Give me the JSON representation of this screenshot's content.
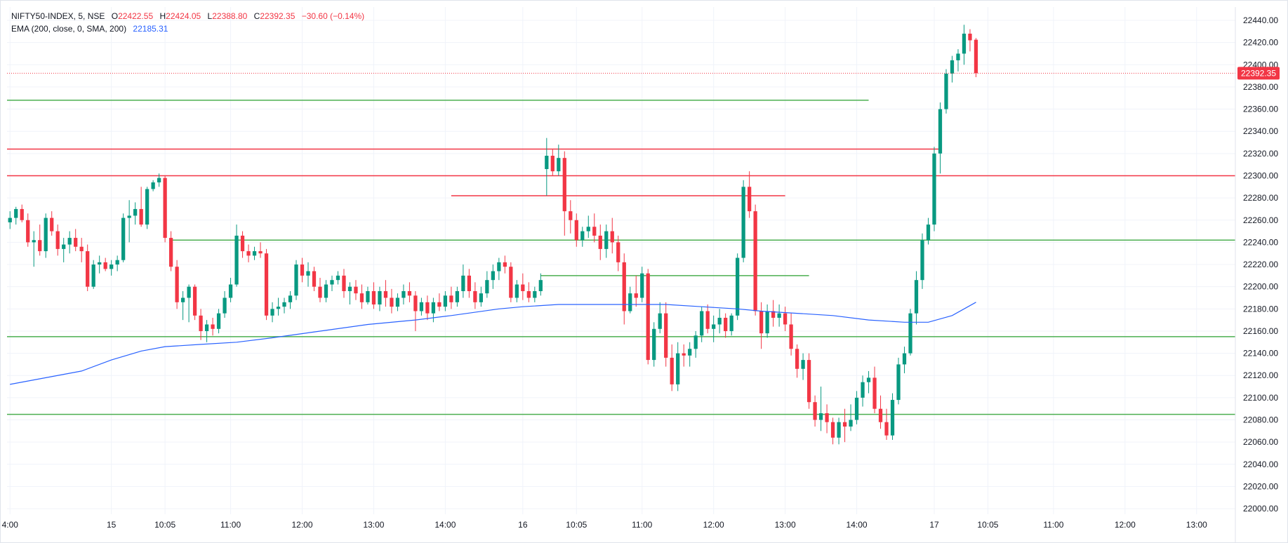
{
  "legend": {
    "symbol": "NIFTY50-INDEX, 5, NSE",
    "o_label": "O",
    "o_value": "22422.55",
    "h_label": "H",
    "h_value": "22424.05",
    "l_label": "L",
    "l_value": "22388.80",
    "c_label": "C",
    "c_value": "22392.35",
    "change": "−30.60 (−0.14%)",
    "indicator": "EMA (200, close, 0, SMA, 200)",
    "indicator_value": "22185.31"
  },
  "price_label": "22392.35",
  "colors": {
    "up": "#089981",
    "down": "#f23645",
    "ema": "#2962ff",
    "support": "#4caf50",
    "resistance": "#f23645",
    "price_line": "#f23645",
    "grid": "#f0f3fa",
    "axis_text": "#131722"
  },
  "chart_data": {
    "type": "candlestick",
    "interval_minutes": 5,
    "y_axis": {
      "ylim": [
        21995,
        22452
      ],
      "ticks": [
        "22000.00",
        "22020.00",
        "22040.00",
        "22060.00",
        "22080.00",
        "22100.00",
        "22120.00",
        "22140.00",
        "22160.00",
        "22180.00",
        "22200.00",
        "22220.00",
        "22240.00",
        "22260.00",
        "22280.00",
        "22300.00",
        "22320.00",
        "22340.00",
        "22360.00",
        "22380.00",
        "22400.00",
        "22420.00",
        "22440.00"
      ]
    },
    "x_axis": {
      "ticks": [
        {
          "label": "4:00",
          "bar": 0
        },
        {
          "label": "15",
          "bar": 17
        },
        {
          "label": "10:05",
          "bar": 26
        },
        {
          "label": "11:00",
          "bar": 37
        },
        {
          "label": "12:00",
          "bar": 49
        },
        {
          "label": "13:00",
          "bar": 61
        },
        {
          "label": "14:00",
          "bar": 73
        },
        {
          "label": "16",
          "bar": 86
        },
        {
          "label": "10:05",
          "bar": 95
        },
        {
          "label": "11:00",
          "bar": 106
        },
        {
          "label": "12:00",
          "bar": 118
        },
        {
          "label": "13:00",
          "bar": 130
        },
        {
          "label": "14:00",
          "bar": 142
        },
        {
          "label": "17",
          "bar": 155
        },
        {
          "label": "10:05",
          "bar": 164
        },
        {
          "label": "11:00",
          "bar": 175
        },
        {
          "label": "12:00",
          "bar": 187
        },
        {
          "label": "13:00",
          "bar": 199
        }
      ]
    },
    "bar_count": 206,
    "candles": [
      [
        0,
        22258,
        22268,
        22252,
        22262
      ],
      [
        1,
        22262,
        22272,
        22256,
        22270
      ],
      [
        2,
        22270,
        22274,
        22258,
        22260
      ],
      [
        3,
        22260,
        22266,
        22236,
        22240
      ],
      [
        4,
        22240,
        22250,
        22218,
        22242
      ],
      [
        5,
        22242,
        22256,
        22228,
        22232
      ],
      [
        6,
        22232,
        22266,
        22226,
        22262
      ],
      [
        7,
        22262,
        22268,
        22246,
        22250
      ],
      [
        8,
        22250,
        22256,
        22228,
        22234
      ],
      [
        9,
        22234,
        22244,
        22222,
        22238
      ],
      [
        10,
        22238,
        22250,
        22230,
        22244
      ],
      [
        11,
        22244,
        22252,
        22232,
        22236
      ],
      [
        12,
        22236,
        22244,
        22222,
        22232
      ],
      [
        13,
        22232,
        22238,
        22196,
        22200
      ],
      [
        14,
        22200,
        22224,
        22198,
        22220
      ],
      [
        15,
        22220,
        22228,
        22212,
        22222
      ],
      [
        16,
        22222,
        22226,
        22214,
        22216
      ],
      [
        17,
        22216,
        22224,
        22210,
        22220
      ],
      [
        18,
        22220,
        22228,
        22214,
        22224
      ],
      [
        19,
        22224,
        22266,
        22222,
        22262
      ],
      [
        20,
        22262,
        22278,
        22240,
        22264
      ],
      [
        21,
        22264,
        22276,
        22256,
        22270
      ],
      [
        22,
        22270,
        22290,
        22254,
        22256
      ],
      [
        23,
        22256,
        22290,
        22252,
        22288
      ],
      [
        24,
        22288,
        22296,
        22286,
        22294
      ],
      [
        25,
        22294,
        22302,
        22290,
        22298
      ],
      [
        26,
        22298,
        22300,
        22240,
        22244
      ],
      [
        27,
        22244,
        22250,
        22214,
        22218
      ],
      [
        28,
        22218,
        22224,
        22180,
        22186
      ],
      [
        29,
        22186,
        22196,
        22170,
        22190
      ],
      [
        30,
        22190,
        22202,
        22168,
        22200
      ],
      [
        31,
        22200,
        22202,
        22170,
        22174
      ],
      [
        32,
        22174,
        22180,
        22152,
        22160
      ],
      [
        33,
        22160,
        22170,
        22150,
        22166
      ],
      [
        34,
        22166,
        22172,
        22156,
        22162
      ],
      [
        35,
        22162,
        22180,
        22158,
        22176
      ],
      [
        36,
        22176,
        22196,
        22172,
        22190
      ],
      [
        37,
        22190,
        22208,
        22186,
        22202
      ],
      [
        38,
        22202,
        22256,
        22200,
        22246
      ],
      [
        39,
        22246,
        22250,
        22226,
        22232
      ],
      [
        40,
        22232,
        22238,
        22222,
        22228
      ],
      [
        41,
        22228,
        22236,
        22224,
        22232
      ],
      [
        42,
        22232,
        22240,
        22226,
        22230
      ],
      [
        43,
        22230,
        22234,
        22170,
        22174
      ],
      [
        44,
        22174,
        22186,
        22168,
        22180
      ],
      [
        45,
        22180,
        22190,
        22174,
        22182
      ],
      [
        46,
        22182,
        22190,
        22176,
        22186
      ],
      [
        47,
        22186,
        22196,
        22180,
        22192
      ],
      [
        48,
        22192,
        22224,
        22188,
        22220
      ],
      [
        49,
        22220,
        22226,
        22204,
        22210
      ],
      [
        50,
        22210,
        22222,
        22200,
        22214
      ],
      [
        51,
        22214,
        22218,
        22196,
        22200
      ],
      [
        52,
        22200,
        22208,
        22186,
        22190
      ],
      [
        53,
        22190,
        22206,
        22186,
        22202
      ],
      [
        54,
        22202,
        22210,
        22196,
        22206
      ],
      [
        55,
        22206,
        22214,
        22202,
        22210
      ],
      [
        56,
        22210,
        22216,
        22190,
        22196
      ],
      [
        57,
        22196,
        22204,
        22184,
        22200
      ],
      [
        58,
        22200,
        22206,
        22188,
        22194
      ],
      [
        59,
        22194,
        22202,
        22180,
        22186
      ],
      [
        60,
        22186,
        22200,
        22184,
        22196
      ],
      [
        61,
        22196,
        22204,
        22180,
        22184
      ],
      [
        62,
        22184,
        22200,
        22178,
        22196
      ],
      [
        63,
        22196,
        22206,
        22182,
        22190
      ],
      [
        64,
        22190,
        22198,
        22176,
        22182
      ],
      [
        65,
        22182,
        22194,
        22178,
        22190
      ],
      [
        66,
        22190,
        22202,
        22184,
        22196
      ],
      [
        67,
        22196,
        22204,
        22186,
        22192
      ],
      [
        68,
        22192,
        22196,
        22160,
        22178
      ],
      [
        69,
        22178,
        22190,
        22174,
        22186
      ],
      [
        70,
        22186,
        22192,
        22170,
        22176
      ],
      [
        71,
        22176,
        22190,
        22168,
        22186
      ],
      [
        72,
        22186,
        22194,
        22178,
        22182
      ],
      [
        73,
        22182,
        22196,
        22178,
        22192
      ],
      [
        74,
        22192,
        22200,
        22180,
        22186
      ],
      [
        75,
        22186,
        22200,
        22182,
        22196
      ],
      [
        76,
        22196,
        22220,
        22190,
        22210
      ],
      [
        77,
        22210,
        22216,
        22190,
        22196
      ],
      [
        78,
        22196,
        22204,
        22180,
        22186
      ],
      [
        79,
        22186,
        22200,
        22182,
        22194
      ],
      [
        80,
        22194,
        22214,
        22190,
        22206
      ],
      [
        81,
        22206,
        22220,
        22198,
        22214
      ],
      [
        82,
        22214,
        22226,
        22206,
        22222
      ],
      [
        83,
        22222,
        22228,
        22212,
        22218
      ],
      [
        84,
        22218,
        22222,
        22186,
        22190
      ],
      [
        85,
        22190,
        22206,
        22186,
        22202
      ],
      [
        86,
        22202,
        22212,
        22188,
        22196
      ],
      [
        87,
        22196,
        22204,
        22186,
        22190
      ],
      [
        88,
        22190,
        22200,
        22186,
        22196
      ],
      [
        89,
        22196,
        22212,
        22192,
        22206
      ],
      [
        90,
        22306,
        22334,
        22282,
        22318
      ],
      [
        91,
        22318,
        22324,
        22300,
        22304
      ],
      [
        92,
        22304,
        22328,
        22300,
        22316
      ],
      [
        93,
        22316,
        22322,
        22246,
        22268
      ],
      [
        94,
        22268,
        22278,
        22248,
        22260
      ],
      [
        95,
        22260,
        22266,
        22236,
        22242
      ],
      [
        96,
        22242,
        22254,
        22236,
        22250
      ],
      [
        97,
        22250,
        22264,
        22244,
        22254
      ],
      [
        98,
        22254,
        22266,
        22240,
        22246
      ],
      [
        99,
        22246,
        22256,
        22224,
        22234
      ],
      [
        100,
        22234,
        22256,
        22226,
        22250
      ],
      [
        101,
        22250,
        22262,
        22230,
        22240
      ],
      [
        102,
        22240,
        22246,
        22214,
        22222
      ],
      [
        103,
        22222,
        22230,
        22166,
        22178
      ],
      [
        104,
        22178,
        22200,
        22176,
        22194
      ],
      [
        105,
        22194,
        22210,
        22182,
        22190
      ],
      [
        106,
        22190,
        22218,
        22186,
        22212
      ],
      [
        107,
        22212,
        22216,
        22130,
        22134
      ],
      [
        108,
        22134,
        22168,
        22128,
        22162
      ],
      [
        109,
        22162,
        22186,
        22158,
        22176
      ],
      [
        110,
        22176,
        22186,
        22128,
        22136
      ],
      [
        111,
        22136,
        22148,
        22106,
        22112
      ],
      [
        112,
        22112,
        22150,
        22106,
        22140
      ],
      [
        113,
        22140,
        22148,
        22128,
        22138
      ],
      [
        114,
        22138,
        22150,
        22128,
        22144
      ],
      [
        115,
        22144,
        22160,
        22136,
        22156
      ],
      [
        116,
        22156,
        22182,
        22150,
        22178
      ],
      [
        117,
        22178,
        22184,
        22158,
        22162
      ],
      [
        118,
        22162,
        22174,
        22150,
        22166
      ],
      [
        119,
        22166,
        22180,
        22158,
        22172
      ],
      [
        120,
        22172,
        22176,
        22154,
        22160
      ],
      [
        121,
        22160,
        22176,
        22156,
        22174
      ],
      [
        122,
        22174,
        22230,
        22170,
        22226
      ],
      [
        123,
        22226,
        22296,
        22222,
        22290
      ],
      [
        124,
        22290,
        22304,
        22262,
        22268
      ],
      [
        125,
        22268,
        22274,
        22174,
        22178
      ],
      [
        126,
        22178,
        22186,
        22144,
        22158
      ],
      [
        127,
        22158,
        22184,
        22154,
        22178
      ],
      [
        128,
        22178,
        22188,
        22164,
        22172
      ],
      [
        129,
        22172,
        22184,
        22164,
        22176
      ],
      [
        130,
        22176,
        22182,
        22160,
        22166
      ],
      [
        131,
        22166,
        22176,
        22138,
        22144
      ],
      [
        132,
        22144,
        22148,
        22118,
        22126
      ],
      [
        133,
        22126,
        22140,
        22116,
        22134
      ],
      [
        134,
        22134,
        22140,
        22090,
        22096
      ],
      [
        135,
        22096,
        22102,
        22074,
        22080
      ],
      [
        136,
        22080,
        22110,
        22070,
        22086
      ],
      [
        137,
        22086,
        22094,
        22068,
        22078
      ],
      [
        138,
        22078,
        22082,
        22058,
        22064
      ],
      [
        139,
        22064,
        22082,
        22058,
        22078
      ],
      [
        140,
        22078,
        22090,
        22060,
        22074
      ],
      [
        141,
        22074,
        22094,
        22070,
        22080
      ],
      [
        142,
        22080,
        22106,
        22076,
        22100
      ],
      [
        143,
        22100,
        22120,
        22092,
        22114
      ],
      [
        144,
        22114,
        22124,
        22104,
        22118
      ],
      [
        145,
        22118,
        22128,
        22086,
        22090
      ],
      [
        146,
        22090,
        22102,
        22072,
        22078
      ],
      [
        147,
        22078,
        22090,
        22062,
        22066
      ],
      [
        148,
        22066,
        22104,
        22062,
        22098
      ],
      [
        149,
        22098,
        22136,
        22094,
        22130
      ],
      [
        150,
        22130,
        22146,
        22122,
        22140
      ],
      [
        151,
        22140,
        22180,
        22138,
        22176
      ],
      [
        152,
        22176,
        22214,
        22166,
        22206
      ],
      [
        153,
        22206,
        22248,
        22198,
        22242
      ],
      [
        154,
        22242,
        22262,
        22238,
        22256
      ],
      [
        155,
        22256,
        22326,
        22250,
        22320
      ],
      [
        156,
        22320,
        22366,
        22302,
        22360
      ],
      [
        157,
        22360,
        22396,
        22356,
        22392
      ],
      [
        158,
        22392,
        22408,
        22384,
        22404
      ],
      [
        159,
        22404,
        22414,
        22394,
        22410
      ],
      [
        160,
        22410,
        22436,
        22400,
        22428
      ],
      [
        161,
        22428,
        22432,
        22412,
        22422
      ],
      [
        162,
        22422.55,
        22424.05,
        22388.8,
        22392.35
      ]
    ],
    "ema": [
      [
        0,
        22112
      ],
      [
        6,
        22118
      ],
      [
        12,
        22124
      ],
      [
        17,
        22134
      ],
      [
        22,
        22142
      ],
      [
        26,
        22146
      ],
      [
        32,
        22148
      ],
      [
        38,
        22150
      ],
      [
        44,
        22154
      ],
      [
        52,
        22160
      ],
      [
        60,
        22166
      ],
      [
        68,
        22170
      ],
      [
        74,
        22174
      ],
      [
        82,
        22180
      ],
      [
        86,
        22182
      ],
      [
        92,
        22184
      ],
      [
        98,
        22184
      ],
      [
        104,
        22184
      ],
      [
        110,
        22184
      ],
      [
        116,
        22182
      ],
      [
        122,
        22180
      ],
      [
        126,
        22178
      ],
      [
        132,
        22176
      ],
      [
        138,
        22174
      ],
      [
        144,
        22170
      ],
      [
        150,
        22168
      ],
      [
        154,
        22168
      ],
      [
        158,
        22174
      ],
      [
        162,
        22186
      ]
    ],
    "horizontal_lines": [
      {
        "price": 22368,
        "from_bar": 0,
        "to_bar": 144,
        "color": "support"
      },
      {
        "price": 22324,
        "from_bar": 0,
        "to_bar": 156,
        "color": "resistance"
      },
      {
        "price": 22300,
        "from_bar": 0,
        "to_bar": 206,
        "color": "resistance"
      },
      {
        "price": 22282,
        "from_bar": 74,
        "to_bar": 130,
        "color": "resistance"
      },
      {
        "price": 22242,
        "from_bar": 27,
        "to_bar": 206,
        "color": "support"
      },
      {
        "price": 22210,
        "from_bar": 89,
        "to_bar": 134,
        "color": "support"
      },
      {
        "price": 22155,
        "from_bar": 0,
        "to_bar": 206,
        "color": "support"
      },
      {
        "price": 22085,
        "from_bar": 0,
        "to_bar": 206,
        "color": "support"
      }
    ],
    "last_price": 22392.35
  }
}
